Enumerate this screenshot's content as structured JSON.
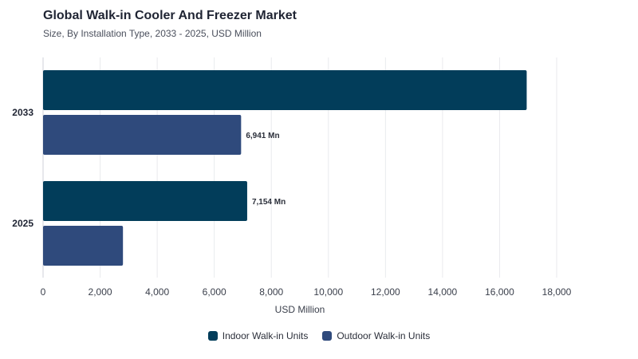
{
  "chart_title": "Global Walk-in Cooler And Freezer Market",
  "chart_subtitle": "Size, By Installation Type, 2033 - 2025, USD Million",
  "colors": {
    "indoor": "#023d5a",
    "outdoor": "#2f4a7c",
    "grid": "#e9eaee",
    "text": "#2b2f3a"
  },
  "chart_data": {
    "type": "bar",
    "orientation": "horizontal",
    "categories": [
      "2033",
      "2025"
    ],
    "series": [
      {
        "name": "Indoor Walk-in Units",
        "values": [
          16950,
          7154
        ],
        "labels": [
          "",
          "7,154 Mn"
        ]
      },
      {
        "name": "Outdoor Walk-in Units",
        "values": [
          6941,
          2800
        ],
        "labels": [
          "6,941 Mn",
          ""
        ]
      }
    ],
    "xlabel": "USD Million",
    "ylabel": "",
    "xlim": [
      0,
      18000
    ],
    "xticks": [
      "0",
      "2,000",
      "4,000",
      "6,000",
      "8,000",
      "10,000",
      "12,000",
      "14,000",
      "16,000",
      "18,000"
    ],
    "grid": true,
    "legend": "bottom-center"
  }
}
